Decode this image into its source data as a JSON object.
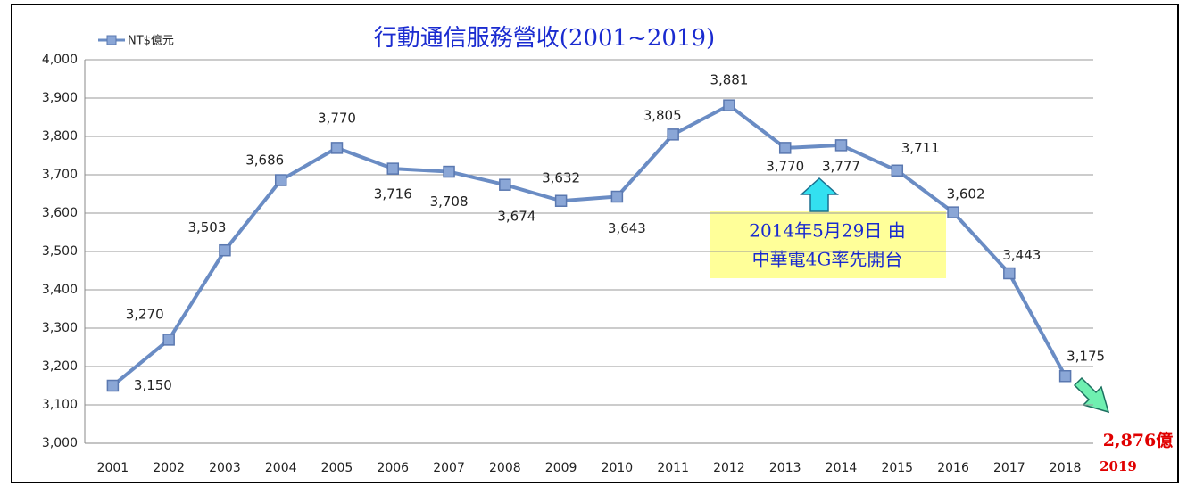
{
  "chart_data": {
    "type": "line",
    "title": "行動通信服務營收(2001~2019)",
    "categories": [
      "2001",
      "2002",
      "2003",
      "2004",
      "2005",
      "2006",
      "2007",
      "2008",
      "2009",
      "2010",
      "2011",
      "2012",
      "2013",
      "2014",
      "2015",
      "2016",
      "2017",
      "2018"
    ],
    "series": [
      {
        "name": "NT$億元",
        "color": "#6a8cc4",
        "values": [
          3150,
          3270,
          3503,
          3686,
          3770,
          3716,
          3708,
          3674,
          3632,
          3643,
          3805,
          3881,
          3770,
          3777,
          3711,
          3602,
          3443,
          3175
        ],
        "value_labels": [
          "3,150",
          "3,270",
          "3,503",
          "3,686",
          "3,770",
          "3,716",
          "3,708",
          "3,674",
          "3,632",
          "3,643",
          "3,805",
          "3,881",
          "3,770",
          "3,777",
          "3,711",
          "3,602",
          "3,443",
          "3,175"
        ]
      }
    ],
    "ylim": [
      3000,
      4000
    ],
    "yticks": [
      {
        "value": 3000,
        "label": "3,000"
      },
      {
        "value": 3100,
        "label": "3,100"
      },
      {
        "value": 3200,
        "label": "3,200"
      },
      {
        "value": 3300,
        "label": "3,300"
      },
      {
        "value": 3400,
        "label": "3,400"
      },
      {
        "value": 3500,
        "label": "3,500"
      },
      {
        "value": 3600,
        "label": "3,600"
      },
      {
        "value": 3700,
        "label": "3,700"
      },
      {
        "value": 3800,
        "label": "3,800"
      },
      {
        "value": 3900,
        "label": "3,900"
      },
      {
        "value": 4000,
        "label": "4,000"
      }
    ],
    "grid": true,
    "legend": "top-left",
    "annotations": [
      "2014年5月29日 由",
      "中華電4G率先開台"
    ],
    "forecast_label": "2,876億",
    "forecast_year": "2019"
  }
}
